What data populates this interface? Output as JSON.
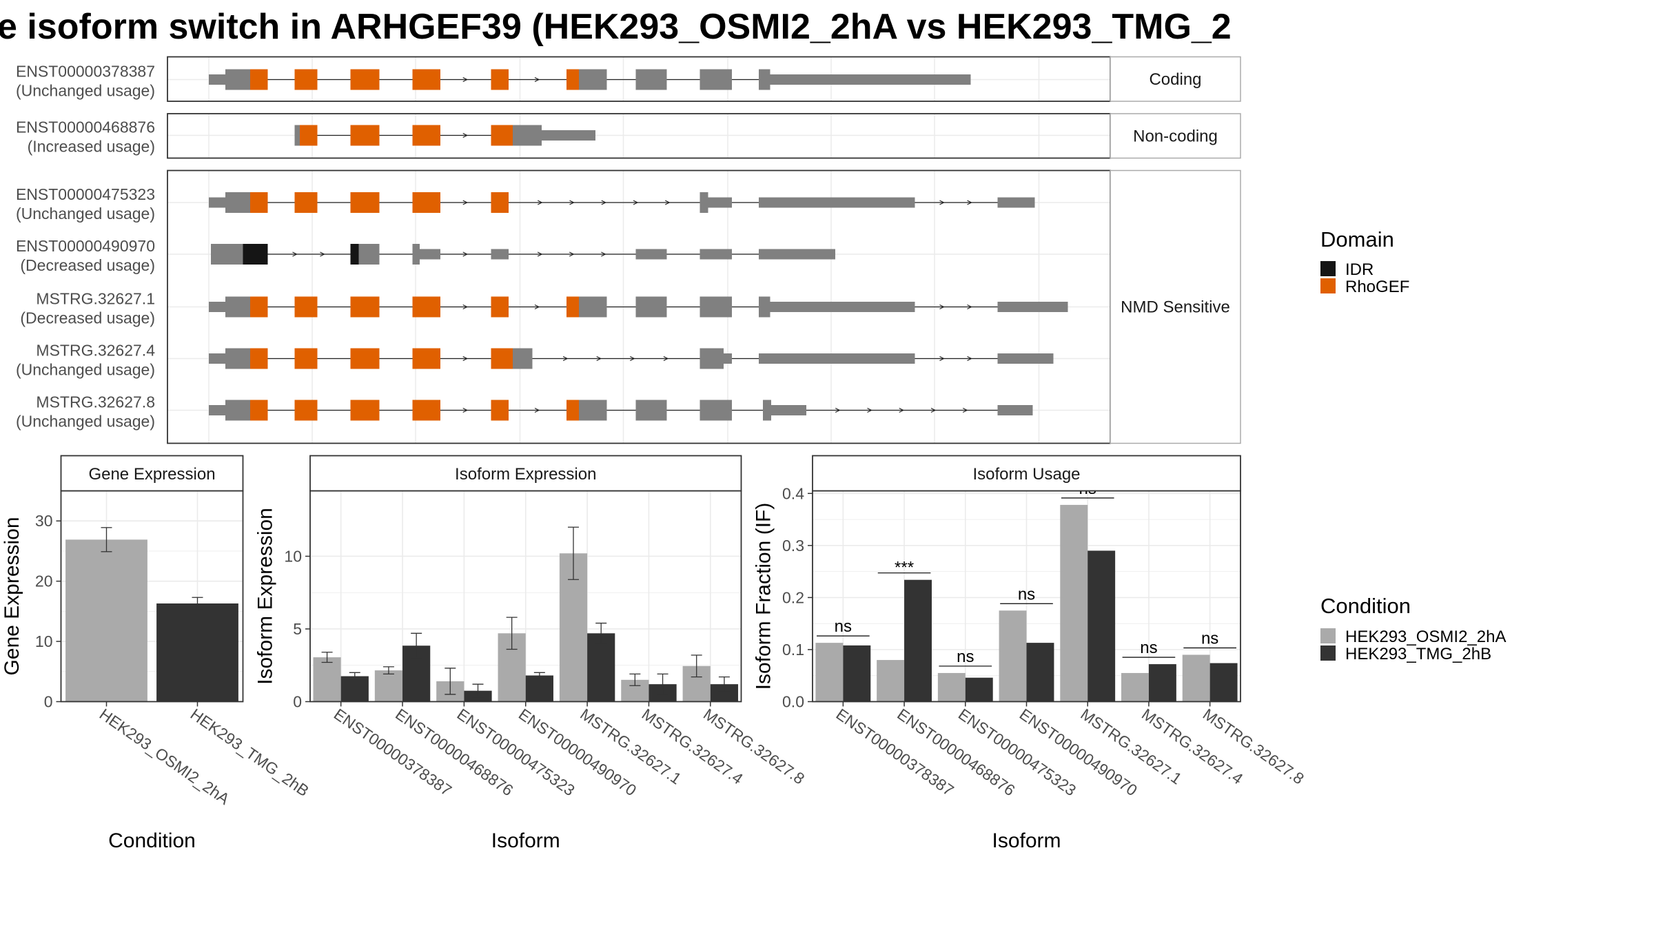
{
  "title": "e isoform switch in ARHGEF39 (HEK293_OSMI2_2hA vs HEK293_TMG_2",
  "colors": {
    "exon": "#808080",
    "rhogef": "#E06000",
    "idr": "#151515",
    "condition_a": "#AAAAAA",
    "condition_b": "#333333",
    "grid": "#EBEBEB",
    "panel_border": "#333333",
    "strip_border": "#AAAAAA"
  },
  "structure": {
    "groups": [
      {
        "label": "Coding",
        "isoforms": [
          {
            "id": "ENST00000378387",
            "usage": "(Unchanged usage)",
            "exons": [
              [
                202,
                218,
                0.5,
                "e"
              ],
              [
                218,
                242,
                1,
                "e"
              ],
              [
                242,
                259,
                1,
                "r"
              ],
              [
                285,
                307,
                1,
                "r"
              ],
              [
                339,
                367,
                1,
                "r"
              ],
              [
                399,
                426,
                1,
                "r"
              ],
              [
                475,
                492,
                1,
                "r"
              ],
              [
                548,
                560,
                1,
                "r"
              ],
              [
                560,
                587,
                1,
                "e"
              ],
              [
                615,
                645,
                1,
                "e"
              ],
              [
                677,
                708,
                1,
                "e"
              ],
              [
                734,
                745,
                1,
                "e"
              ],
              [
                745,
                939,
                0.5,
                "e"
              ]
            ]
          }
        ]
      },
      {
        "label": "Non-coding",
        "isoforms": [
          {
            "id": "ENST00000468876",
            "usage": "(Increased usage)",
            "exons": [
              [
                285,
                290,
                1,
                "e"
              ],
              [
                290,
                307,
                1,
                "r"
              ],
              [
                339,
                367,
                1,
                "r"
              ],
              [
                399,
                426,
                1,
                "r"
              ],
              [
                475,
                496,
                1,
                "r"
              ],
              [
                496,
                524,
                1,
                "e"
              ],
              [
                524,
                576,
                0.5,
                "e"
              ]
            ]
          }
        ]
      },
      {
        "label": "NMD Sensitive",
        "isoforms": [
          {
            "id": "ENST00000475323",
            "usage": "(Unchanged usage)",
            "exons": [
              [
                202,
                218,
                0.5,
                "e"
              ],
              [
                218,
                242,
                1,
                "e"
              ],
              [
                242,
                259,
                1,
                "r"
              ],
              [
                285,
                307,
                1,
                "r"
              ],
              [
                339,
                367,
                1,
                "r"
              ],
              [
                399,
                426,
                1,
                "r"
              ],
              [
                475,
                492,
                1,
                "r"
              ],
              [
                677,
                685,
                1,
                "e"
              ],
              [
                685,
                708,
                0.5,
                "e"
              ],
              [
                734,
                885,
                0.5,
                "e"
              ],
              [
                965,
                1001,
                0.5,
                "e"
              ]
            ]
          },
          {
            "id": "ENST00000490970",
            "usage": "(Decreased usage)",
            "exons": [
              [
                204,
                235,
                1,
                "e"
              ],
              [
                235,
                259,
                1,
                "i"
              ],
              [
                339,
                347,
                1,
                "i"
              ],
              [
                347,
                367,
                1,
                "e"
              ],
              [
                399,
                406,
                1,
                "e"
              ],
              [
                406,
                426,
                0.5,
                "e"
              ],
              [
                475,
                492,
                0.5,
                "e"
              ],
              [
                615,
                645,
                0.5,
                "e"
              ],
              [
                677,
                708,
                0.5,
                "e"
              ],
              [
                734,
                808,
                0.5,
                "e"
              ]
            ]
          },
          {
            "id": "MSTRG.32627.1",
            "usage": "(Decreased usage)",
            "exons": [
              [
                202,
                218,
                0.5,
                "e"
              ],
              [
                218,
                242,
                1,
                "e"
              ],
              [
                242,
                259,
                1,
                "r"
              ],
              [
                285,
                307,
                1,
                "r"
              ],
              [
                339,
                367,
                1,
                "r"
              ],
              [
                399,
                426,
                1,
                "r"
              ],
              [
                475,
                492,
                1,
                "r"
              ],
              [
                548,
                560,
                1,
                "r"
              ],
              [
                560,
                587,
                1,
                "e"
              ],
              [
                615,
                645,
                1,
                "e"
              ],
              [
                677,
                708,
                1,
                "e"
              ],
              [
                734,
                745,
                1,
                "e"
              ],
              [
                745,
                885,
                0.5,
                "e"
              ],
              [
                965,
                1033,
                0.5,
                "e"
              ]
            ]
          },
          {
            "id": "MSTRG.32627.4",
            "usage": "(Unchanged usage)",
            "exons": [
              [
                202,
                218,
                0.5,
                "e"
              ],
              [
                218,
                242,
                1,
                "e"
              ],
              [
                242,
                259,
                1,
                "r"
              ],
              [
                285,
                307,
                1,
                "r"
              ],
              [
                339,
                367,
                1,
                "r"
              ],
              [
                399,
                426,
                1,
                "r"
              ],
              [
                475,
                496,
                1,
                "r"
              ],
              [
                496,
                515,
                1,
                "e"
              ],
              [
                677,
                700,
                1,
                "e"
              ],
              [
                700,
                708,
                0.5,
                "e"
              ],
              [
                734,
                885,
                0.5,
                "e"
              ],
              [
                965,
                1019,
                0.5,
                "e"
              ]
            ]
          },
          {
            "id": "MSTRG.32627.8",
            "usage": "(Unchanged usage)",
            "exons": [
              [
                202,
                218,
                0.5,
                "e"
              ],
              [
                218,
                242,
                1,
                "e"
              ],
              [
                242,
                259,
                1,
                "r"
              ],
              [
                285,
                307,
                1,
                "r"
              ],
              [
                339,
                367,
                1,
                "r"
              ],
              [
                399,
                426,
                1,
                "r"
              ],
              [
                475,
                492,
                1,
                "r"
              ],
              [
                548,
                560,
                1,
                "r"
              ],
              [
                560,
                587,
                1,
                "e"
              ],
              [
                615,
                645,
                1,
                "e"
              ],
              [
                677,
                708,
                1,
                "e"
              ],
              [
                738,
                746,
                1,
                "e"
              ],
              [
                746,
                780,
                0.5,
                "e"
              ],
              [
                965,
                999,
                0.5,
                "e"
              ]
            ]
          }
        ]
      }
    ]
  },
  "legend_domain": {
    "title": "Domain",
    "items": [
      {
        "label": "IDR",
        "color": "#151515"
      },
      {
        "label": "RhoGEF",
        "color": "#E06000"
      }
    ]
  },
  "legend_condition": {
    "title": "Condition",
    "items": [
      {
        "label": "HEK293_OSMI2_2hA",
        "color": "#AAAAAA"
      },
      {
        "label": "HEK293_TMG_2hB",
        "color": "#333333"
      }
    ]
  },
  "chart_data": [
    {
      "type": "bar",
      "title": "Gene Expression",
      "xlabel": "Condition",
      "ylabel": "Gene Expression",
      "categories": [
        "HEK293_OSMI2_2hA",
        "HEK293_TMG_2hB"
      ],
      "values": [
        26.9,
        16.3
      ],
      "errors": [
        [
          24.9,
          28.9
        ],
        [
          15.3,
          17.3
        ]
      ],
      "ylim": [
        0,
        35
      ],
      "yticks": [
        0,
        10,
        20,
        30
      ]
    },
    {
      "type": "bar",
      "title": "Isoform Expression",
      "xlabel": "Isoform",
      "ylabel": "Isoform Expression",
      "categories": [
        "ENST00000378387",
        "ENST00000468876",
        "ENST00000475323",
        "ENST00000490970",
        "MSTRG.32627.1",
        "MSTRG.32627.4",
        "MSTRG.32627.8"
      ],
      "series": [
        {
          "name": "HEK293_OSMI2_2hA",
          "values": [
            3.05,
            2.15,
            1.4,
            4.7,
            10.2,
            1.5,
            2.45
          ],
          "errors": [
            [
              2.7,
              3.4
            ],
            [
              1.9,
              2.4
            ],
            [
              0.5,
              2.3
            ],
            [
              3.6,
              5.8
            ],
            [
              8.4,
              12.0
            ],
            [
              1.1,
              1.9
            ],
            [
              1.7,
              3.2
            ]
          ]
        },
        {
          "name": "HEK293_TMG_2hB",
          "values": [
            1.75,
            3.85,
            0.75,
            1.8,
            4.7,
            1.2,
            1.2
          ],
          "errors": [
            [
              1.5,
              2.0
            ],
            [
              3.0,
              4.7
            ],
            [
              0.3,
              1.2
            ],
            [
              1.6,
              2.0
            ],
            [
              4.0,
              5.4
            ],
            [
              0.5,
              1.9
            ],
            [
              0.7,
              1.7
            ]
          ]
        }
      ],
      "ylim": [
        0,
        14.5
      ],
      "yticks": [
        0,
        5,
        10
      ]
    },
    {
      "type": "bar",
      "title": "Isoform Usage",
      "xlabel": "Isoform",
      "ylabel": "Isoform Fraction (IF)",
      "categories": [
        "ENST00000378387",
        "ENST00000468876",
        "ENST00000475323",
        "ENST00000490970",
        "MSTRG.32627.1",
        "MSTRG.32627.4",
        "MSTRG.32627.8"
      ],
      "series": [
        {
          "name": "HEK293_OSMI2_2hA",
          "values": [
            0.113,
            0.08,
            0.055,
            0.175,
            0.378,
            0.055,
            0.09
          ]
        },
        {
          "name": "HEK293_TMG_2hB",
          "values": [
            0.108,
            0.234,
            0.046,
            0.113,
            0.29,
            0.072,
            0.074
          ]
        }
      ],
      "significance": [
        "ns",
        "***",
        "ns",
        "ns",
        "ns",
        "ns",
        "ns"
      ],
      "ylim": [
        0,
        0.405
      ],
      "yticks": [
        "0.0",
        "0.1",
        "0.2",
        "0.3",
        "0.4"
      ]
    }
  ]
}
